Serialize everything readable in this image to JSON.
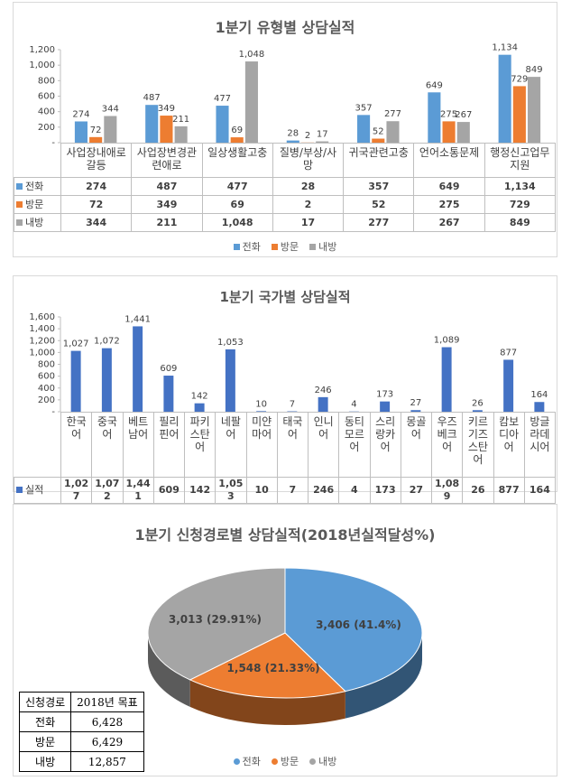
{
  "chart_data": [
    {
      "type": "bar",
      "title": "1분기 유형별 상담실적",
      "categories": [
        "사업장내애로갈등",
        "사업장변경관련애로",
        "일상생활고충",
        "질병/부상/사망",
        "귀국관련고충",
        "언어소통문제",
        "행정신고업무지원"
      ],
      "series": [
        {
          "name": "전화",
          "color": "#5b9bd5",
          "values": [
            274,
            487,
            477,
            28,
            357,
            649,
            1134
          ],
          "value_labels": [
            "274",
            "487",
            "477",
            "28",
            "357",
            "649",
            "1,134"
          ]
        },
        {
          "name": "방문",
          "color": "#ed7d31",
          "values": [
            72,
            349,
            69,
            2,
            52,
            275,
            729
          ]
        },
        {
          "name": "내방",
          "color": "#a5a5a5",
          "values": [
            344,
            211,
            1048,
            17,
            277,
            267,
            849
          ],
          "value_labels": [
            "344",
            "211",
            "1,048",
            "17",
            "277",
            "267",
            "849"
          ]
        }
      ],
      "ylim": [
        0,
        1200
      ],
      "yticks": [
        {
          "value": 0,
          "label": "-"
        },
        200,
        400,
        600,
        800,
        {
          "value": 1000,
          "label": "1,000"
        },
        {
          "value": 1200,
          "label": "1,200"
        }
      ],
      "legend": "bottom"
    },
    {
      "type": "bar",
      "title": "1분기 국가별 상담실적",
      "categories": [
        "한국어",
        "중국어",
        "베트남어",
        "필리핀어",
        "파키스탄어",
        "네팔어",
        "미얀마어",
        "태국어",
        "인니어",
        "동티모르어",
        "스리랑카어",
        "몽골어",
        "우즈베크어",
        "키르기즈스탄어",
        "캄보디아어",
        "방글라데시어"
      ],
      "series": [
        {
          "name": "실적",
          "color": "#4472c4",
          "values": [
            1027,
            1072,
            1441,
            609,
            142,
            1053,
            10,
            7,
            246,
            4,
            173,
            27,
            1089,
            26,
            877,
            164
          ],
          "value_labels": [
            "1,027",
            "1,072",
            "1,441",
            "609",
            "142",
            "1,053",
            "10",
            "7",
            "246",
            "4",
            "173",
            "27",
            "1,089",
            "26",
            "877",
            "164"
          ]
        }
      ],
      "ylim": [
        0,
        1600
      ],
      "yticks": [
        {
          "value": 0,
          "label": "-"
        },
        200,
        400,
        600,
        800,
        {
          "value": 1000,
          "label": "1,000"
        },
        {
          "value": 1200,
          "label": "1,200"
        },
        {
          "value": 1400,
          "label": "1,400"
        },
        {
          "value": 1600,
          "label": "1,600"
        }
      ]
    },
    {
      "type": "pie",
      "title": "1분기 신청경로별 상담실적(2018년실적달성%)",
      "categories": [
        "전화",
        "방문",
        "내방"
      ],
      "values": [
        3406,
        1548,
        3013
      ],
      "value_labels": [
        "3,406 (41.4%)",
        "1,548 (21.33%)",
        "3,013 (29.91%)"
      ],
      "colors": [
        "#5b9bd5",
        "#ed7d31",
        "#a5a5a5"
      ],
      "legend": "bottom"
    }
  ],
  "table": {
    "header": [
      "신청경로",
      "2018년 목표"
    ],
    "rows": [
      [
        "전화",
        "6,428"
      ],
      [
        "방문",
        "6,429"
      ],
      [
        "내방",
        "12,857"
      ]
    ]
  }
}
